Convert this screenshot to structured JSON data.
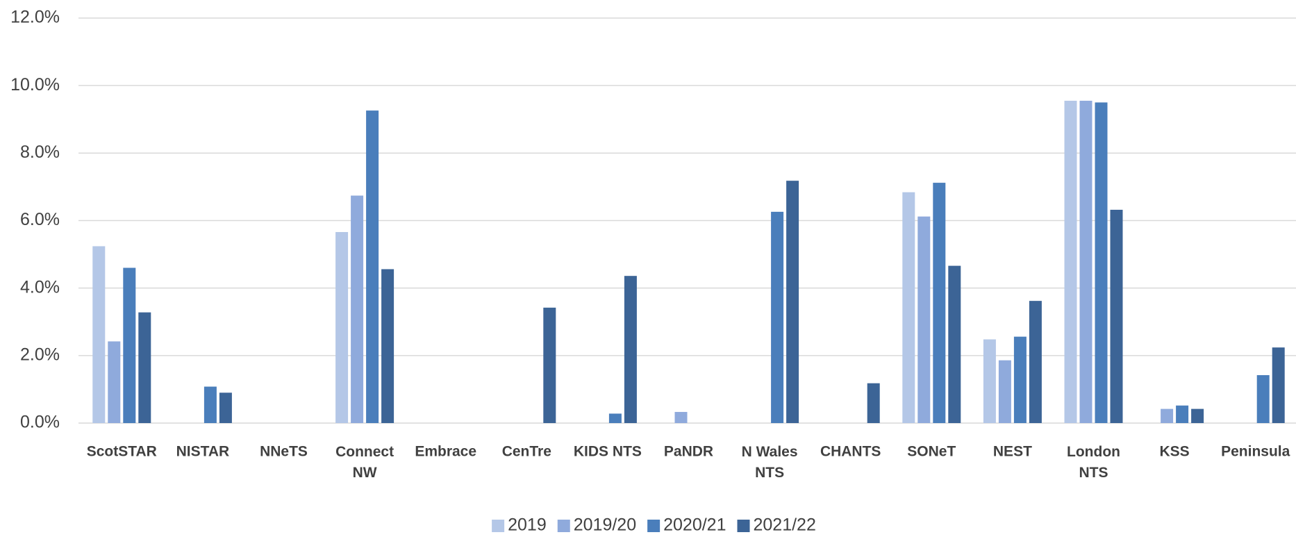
{
  "chart_data": {
    "type": "bar",
    "categories": [
      "ScotSTAR",
      "NISTAR",
      "NNeTS",
      "Connect\nNW",
      "Embrace",
      "CenTre",
      "KIDS NTS",
      "PaNDR",
      "N Wales\nNTS",
      "CHANTS",
      "SONeT",
      "NEST",
      "London\nNTS",
      "KSS",
      "Peninsula"
    ],
    "series": [
      {
        "name": "2019",
        "color": "#b4c7e7",
        "values": [
          5.24,
          null,
          null,
          5.66,
          null,
          null,
          null,
          null,
          null,
          null,
          6.84,
          2.48,
          9.55,
          null,
          null
        ]
      },
      {
        "name": "2019/20",
        "color": "#8faadc",
        "values": [
          2.42,
          null,
          null,
          6.74,
          null,
          null,
          null,
          0.33,
          null,
          null,
          6.12,
          1.86,
          9.55,
          0.42,
          null
        ]
      },
      {
        "name": "2020/21",
        "color": "#4a7ebb",
        "values": [
          4.6,
          1.08,
          null,
          9.26,
          null,
          null,
          0.28,
          null,
          6.26,
          null,
          7.12,
          2.56,
          9.5,
          0.52,
          1.42
        ]
      },
      {
        "name": "2021/22",
        "color": "#3c6496",
        "values": [
          3.28,
          0.9,
          null,
          4.56,
          null,
          3.42,
          4.36,
          null,
          7.18,
          1.18,
          4.66,
          3.62,
          6.32,
          0.42,
          2.24
        ]
      }
    ],
    "ylim": [
      0,
      12
    ],
    "yticks": [
      {
        "value": 0,
        "label": "0.0%"
      },
      {
        "value": 2,
        "label": "2.0%"
      },
      {
        "value": 4,
        "label": "4.0%"
      },
      {
        "value": 6,
        "label": "6.0%"
      },
      {
        "value": 8,
        "label": "8.0%"
      },
      {
        "value": 10,
        "label": "10.0%"
      },
      {
        "value": 12,
        "label": "12.0%"
      }
    ],
    "grid": true,
    "legend": "bottom"
  }
}
